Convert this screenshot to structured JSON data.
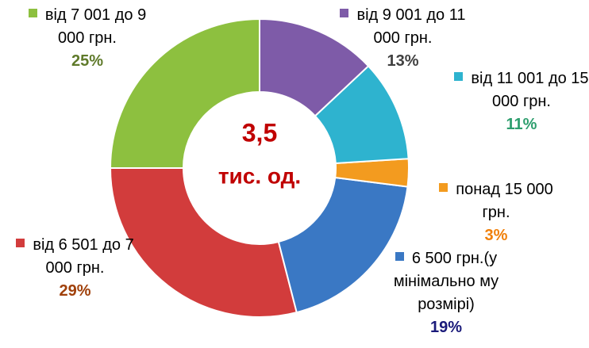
{
  "chart_data": {
    "type": "donut",
    "categories": [
      "від 9 001 до 11 000 грн.",
      "від 11 001 до 15 000 грн.",
      "понад 15 000 грн.",
      "6 500 грн.(у мінімально му розмірі)",
      "від 6 501 до 7 000 грн.",
      "від 7 001 до 9 000 грн."
    ],
    "values": [
      13,
      11,
      3,
      19,
      29,
      25
    ],
    "value_labels": [
      "13%",
      "11%",
      "3%",
      "19%",
      "29%",
      "25%"
    ],
    "colors": [
      "#7e5ba8",
      "#2eb3cf",
      "#f39b1f",
      "#3a78c4",
      "#d23c3c",
      "#8dc03f"
    ],
    "label_colors": [
      "#404040",
      "#2e9e6e",
      "#f07f09",
      "#1a1a7a",
      "#a0400a",
      "#5f7a2a"
    ],
    "annotations": [
      "3,5",
      "тис. од."
    ]
  }
}
